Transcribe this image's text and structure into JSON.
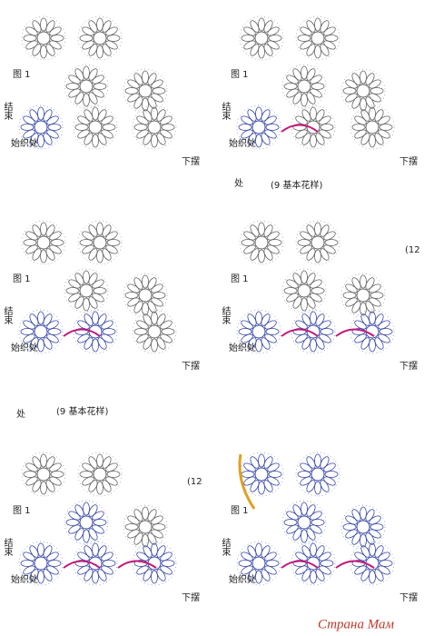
{
  "panels": [
    {
      "fig": "图 1",
      "end": "结束",
      "start": "始织处",
      "hem": "下摆"
    },
    {
      "fig": "图 1",
      "end": "结束",
      "start": "始织处",
      "hem": "下摆"
    },
    {
      "fig": "图 1",
      "end": "结束",
      "start": "始织处",
      "hem": "下摆"
    },
    {
      "fig": "图 1",
      "end": "结束",
      "start": "始织处",
      "hem": "下摆",
      "note": "(12"
    },
    {
      "fig": "图 1",
      "end": "结束",
      "start": "始织处",
      "hem": "下摆",
      "note": "(12"
    },
    {
      "fig": "图 1",
      "end": "结束",
      "start": "始织处",
      "hem": "下摆"
    }
  ],
  "captions": [
    {
      "mark": "处",
      "text": "(9 基本花样)"
    },
    {
      "mark": "处",
      "text": "(9 基本花样)"
    }
  ],
  "watermark": "Страна Мам"
}
